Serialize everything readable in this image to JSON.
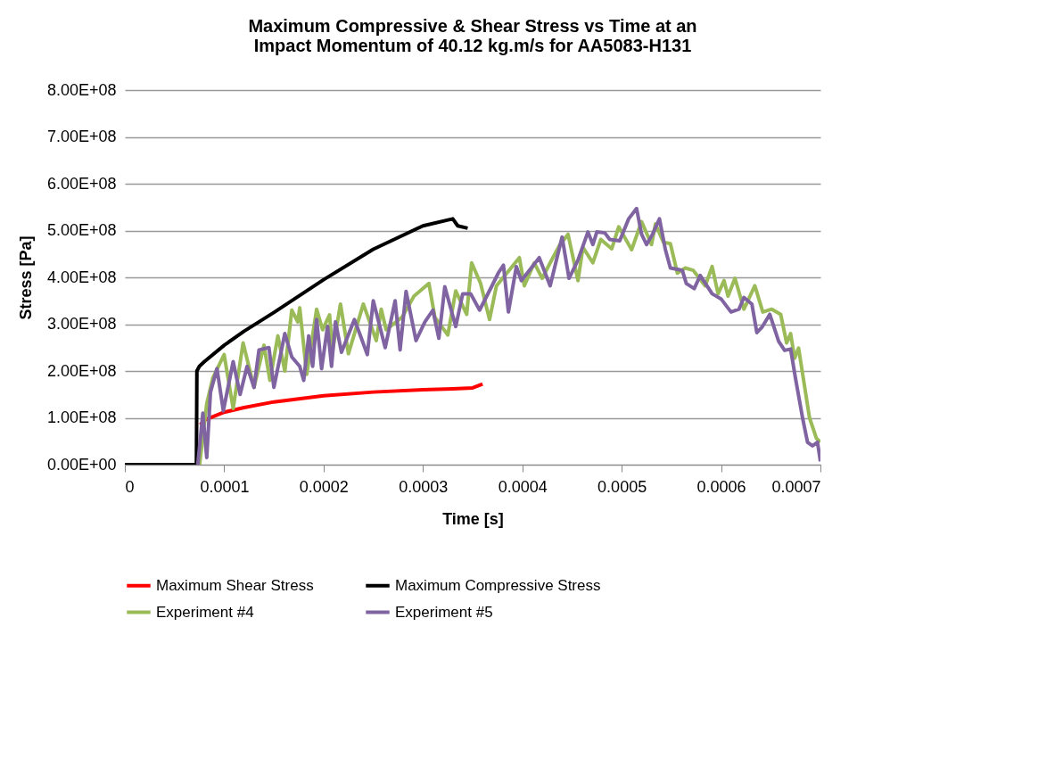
{
  "chart_data": {
    "type": "line",
    "title": "Maximum Compressive & Shear Stress vs Time at an Impact Momentum of 40.12 kg.m/s for AA5083-H131",
    "xlabel": "Time [s]",
    "ylabel": "Stress [Pa]",
    "xlim": [
      0,
      0.0007
    ],
    "xticks": [
      0,
      0.0001,
      0.0002,
      0.0003,
      0.0004,
      0.0005,
      0.0006,
      0.0007
    ],
    "ylim": [
      0,
      800000000
    ],
    "yticks": [
      {
        "value": 0,
        "label": "0.00E+00"
      },
      {
        "value": 100000000,
        "label": "1.00E+08"
      },
      {
        "value": 200000000,
        "label": "2.00E+08"
      },
      {
        "value": 300000000,
        "label": "3.00E+08"
      },
      {
        "value": 400000000,
        "label": "4.00E+08"
      },
      {
        "value": 500000000,
        "label": "5.00E+08"
      },
      {
        "value": 600000000,
        "label": "6.00E+08"
      },
      {
        "value": 700000000,
        "label": "7.00E+08"
      },
      {
        "value": 800000000,
        "label": "8.00E+08"
      }
    ],
    "grid": "y",
    "legend": "bottom",
    "marker": "none",
    "line_style": "solid",
    "series": [
      {
        "name": "Maximum Shear Stress",
        "color": "#ff0000",
        "x": [
          7.6e-05,
          8e-05,
          0.0001,
          0.00012,
          0.00015,
          0.0002,
          0.00025,
          0.0003,
          0.00033,
          0.00035,
          0.00036
        ],
        "values": [
          85000000,
          95000000,
          112000000,
          122000000,
          134000000,
          147000000,
          155000000,
          160000000,
          162000000,
          164000000,
          172000000
        ]
      },
      {
        "name": "Maximum Compressive Stress",
        "color": "#000000",
        "x": [
          0,
          7.2e-05,
          7.25e-05,
          7.5e-05,
          8e-05,
          0.0001,
          0.00012,
          0.00015,
          0.0002,
          0.00025,
          0.0003,
          0.00033,
          0.000335,
          0.000345
        ],
        "values": [
          0,
          0,
          200000000,
          210000000,
          220000000,
          255000000,
          285000000,
          325000000,
          395000000,
          460000000,
          510000000,
          525000000,
          510000000,
          505000000
        ]
      },
      {
        "name": "Experiment #4",
        "color": "#9bbb59",
        "x": [
          7.52e-05,
          8.24e-05,
          8.85e-05,
          9.99e-05,
          0.000109,
          0.000119,
          0.00013,
          0.00014,
          0.000146,
          0.000154,
          0.000161,
          0.000168,
          0.000174,
          0.000176,
          0.000183,
          0.000193,
          0.000199,
          0.000206,
          0.000209,
          0.000217,
          0.000225,
          0.00024,
          0.000253,
          0.000258,
          0.000263,
          0.000279,
          0.000291,
          0.000306,
          0.000312,
          0.000325,
          0.000333,
          0.000344,
          0.000349,
          0.000358,
          0.000367,
          0.000374,
          0.000397,
          0.000402,
          0.000412,
          0.00042,
          0.000428,
          0.000437,
          0.000446,
          0.000456,
          0.000461,
          0.000471,
          0.000479,
          0.00049,
          0.000497,
          0.00051,
          0.00052,
          0.00053,
          0.000534,
          0.000542,
          0.000549,
          0.000556,
          0.000564,
          0.000572,
          0.000584,
          0.000591,
          0.000597,
          0.000603,
          0.000607,
          0.000614,
          0.000623,
          0.000634,
          0.000642,
          0.000651,
          0.00066,
          0.000666,
          0.00067,
          0.000674,
          0.000678,
          0.000689,
          0.000696,
          0.0007
        ],
        "values": [
          0,
          130000000,
          185000000,
          235000000,
          120000000,
          260000000,
          165000000,
          255000000,
          180000000,
          275000000,
          200000000,
          330000000,
          305000000,
          335000000,
          193000000,
          332000000,
          288000000,
          320000000,
          243000000,
          343000000,
          237000000,
          343000000,
          265000000,
          332000000,
          288000000,
          315000000,
          360000000,
          387000000,
          315000000,
          277000000,
          371000000,
          321000000,
          431000000,
          387000000,
          310000000,
          382000000,
          442000000,
          382000000,
          431000000,
          398000000,
          431000000,
          467000000,
          492000000,
          393000000,
          464000000,
          431000000,
          481000000,
          461000000,
          508000000,
          459000000,
          519000000,
          470000000,
          514000000,
          475000000,
          472000000,
          409000000,
          420000000,
          415000000,
          382000000,
          423000000,
          365000000,
          393000000,
          360000000,
          398000000,
          332000000,
          382000000,
          326000000,
          332000000,
          321000000,
          260000000,
          280000000,
          227000000,
          249000000,
          100000000,
          56000000,
          48000000
        ]
      },
      {
        "name": "Experiment #5",
        "color": "#8064a2",
        "x": [
          7.34e-05,
          7.85e-05,
          8.24e-05,
          8.62e-05,
          9.27e-05,
          9.91e-05,
          0.000109,
          0.000116,
          0.000123,
          0.00013,
          0.000135,
          0.000145,
          0.00015,
          0.000161,
          0.000168,
          0.000176,
          0.00018,
          0.000185,
          0.000189,
          0.000193,
          0.000198,
          0.000204,
          0.000208,
          0.000212,
          0.000218,
          0.000231,
          0.000238,
          0.000244,
          0.00025,
          0.000262,
          0.000272,
          0.000277,
          0.000283,
          0.000293,
          0.000302,
          0.00031,
          0.000316,
          0.000322,
          0.000333,
          0.00034,
          0.000348,
          0.000357,
          0.000369,
          0.000376,
          0.000381,
          0.000386,
          0.000394,
          0.000399,
          0.000417,
          0.000428,
          0.00044,
          0.000447,
          0.000456,
          0.000466,
          0.000471,
          0.000475,
          0.000483,
          0.000488,
          0.000498,
          0.000507,
          0.000515,
          0.00052,
          0.000525,
          0.000531,
          0.000538,
          0.000544,
          0.000549,
          0.000561,
          0.000565,
          0.000573,
          0.000579,
          0.000591,
          0.0006,
          0.00061,
          0.000618,
          0.000623,
          0.000631,
          0.000636,
          0.000641,
          0.000649,
          0.000658,
          0.000664,
          0.00067,
          0.000675,
          0.000682,
          0.000687,
          0.000692,
          0.000697,
          0.0007
        ],
        "values": [
          0,
          110000000,
          15000000,
          155000000,
          205000000,
          115000000,
          220000000,
          150000000,
          210000000,
          165000000,
          245000000,
          250000000,
          165000000,
          280000000,
          230000000,
          210000000,
          180000000,
          275000000,
          210000000,
          310000000,
          205000000,
          295000000,
          210000000,
          305000000,
          240000000,
          310000000,
          270000000,
          235000000,
          350000000,
          250000000,
          350000000,
          245000000,
          370000000,
          265000000,
          305000000,
          330000000,
          270000000,
          380000000,
          295000000,
          365000000,
          365000000,
          330000000,
          380000000,
          410000000,
          426000000,
          326000000,
          423000000,
          393000000,
          442000000,
          382000000,
          486000000,
          398000000,
          437000000,
          497000000,
          470000000,
          497000000,
          495000000,
          481000000,
          478000000,
          525000000,
          547000000,
          492000000,
          470000000,
          492000000,
          525000000,
          459000000,
          420000000,
          415000000,
          387000000,
          376000000,
          404000000,
          365000000,
          354000000,
          326000000,
          332000000,
          357000000,
          343000000,
          282000000,
          293000000,
          321000000,
          263000000,
          244000000,
          247000000,
          183000000,
          100000000,
          48000000,
          40000000,
          48000000,
          7000000
        ]
      }
    ]
  }
}
